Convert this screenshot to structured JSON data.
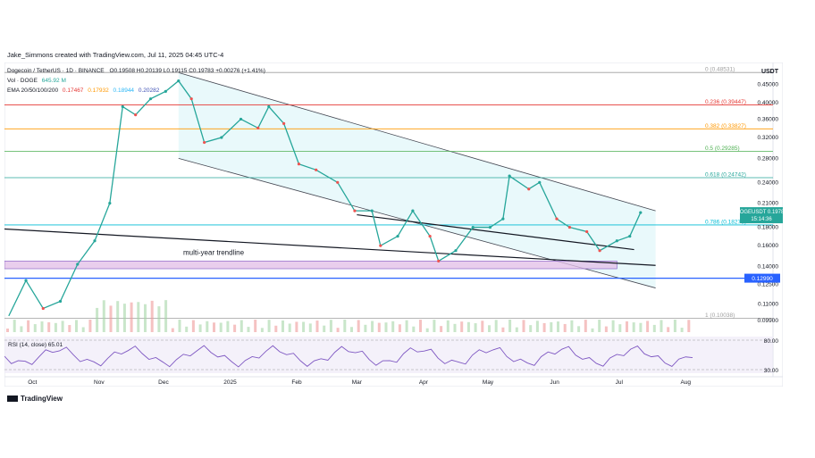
{
  "caption": "Jake_Simmons created with TradingView.com, Jul 11, 2025 04:45 UTC-4",
  "header": {
    "symbol": "Dogecoin / TetherUS · 1D · BINANCE",
    "ohlc": "O0.19508 H0.20139 L0.19115 C0.19783 +0.00276 (+1.41%)",
    "vol_label": "Vol · DOGE",
    "vol_value": "645.92 M",
    "ema_label": "EMA 20/50/100/200",
    "ema_values": [
      "0.17467",
      "0.17932",
      "0.18944",
      "0.20282"
    ]
  },
  "currency": "USDT",
  "price_badge": {
    "symbol": "DOGEUSDT",
    "value": "0.19783",
    "countdown": "15:14:36"
  },
  "support_badge": "0.12990",
  "rsi_label": "RSI (14, close)",
  "rsi_value": "65.01",
  "rsi_axis": [
    "80.00",
    "30.00"
  ],
  "watermark": "TradingView",
  "chart_data": {
    "type": "line",
    "title": "Dogecoin / TetherUS · 1D · BINANCE",
    "x_axis_labels": [
      "Oct",
      "Nov",
      "Dec",
      "2025",
      "Feb",
      "Mar",
      "Apr",
      "May",
      "Jun",
      "Jul",
      "Aug"
    ],
    "y_axis_labels": [
      "0.45000",
      "0.40000",
      "0.36000",
      "0.32000",
      "0.28000",
      "0.24000",
      "0.21000",
      "0.18000",
      "0.16000",
      "0.14000",
      "0.12500",
      "0.11000",
      "0.09900"
    ],
    "ylim": [
      0.093,
      0.5
    ],
    "y_scale": "log",
    "fib_levels": [
      {
        "label": "0 (0.48531)",
        "value": 0.48531,
        "color": "#9e9e9e"
      },
      {
        "label": "0.236 (0.39447)",
        "value": 0.39447,
        "color": "#e53935"
      },
      {
        "label": "0.382 (0.33827)",
        "value": 0.33827,
        "color": "#ff9800"
      },
      {
        "label": "0.5 (0.29285)",
        "value": 0.29285,
        "color": "#4caf50"
      },
      {
        "label": "0.618 (0.24742)",
        "value": 0.24742,
        "color": "#26a69a"
      },
      {
        "label": "0.786 (0.18276)",
        "value": 0.18276,
        "color": "#00bcd4"
      },
      {
        "label": "1 (0.10038)",
        "value": 0.10038,
        "color": "#9e9e9e"
      }
    ],
    "annotation": "multi-year trendline",
    "support_level": 0.1299,
    "zone": [
      0.138,
      0.145
    ],
    "price_path": [
      {
        "date": "2024-09-20",
        "close": 0.102
      },
      {
        "date": "2024-09-28",
        "close": 0.128
      },
      {
        "date": "2024-10-06",
        "close": 0.107
      },
      {
        "date": "2024-10-14",
        "close": 0.112
      },
      {
        "date": "2024-10-22",
        "close": 0.142
      },
      {
        "date": "2024-10-30",
        "close": 0.165
      },
      {
        "date": "2024-11-06",
        "close": 0.21
      },
      {
        "date": "2024-11-12",
        "close": 0.39
      },
      {
        "date": "2024-11-18",
        "close": 0.37
      },
      {
        "date": "2024-11-25",
        "close": 0.41
      },
      {
        "date": "2024-12-02",
        "close": 0.43
      },
      {
        "date": "2024-12-08",
        "close": 0.46
      },
      {
        "date": "2024-12-14",
        "close": 0.41
      },
      {
        "date": "2024-12-20",
        "close": 0.31
      },
      {
        "date": "2024-12-28",
        "close": 0.32
      },
      {
        "date": "2025-01-06",
        "close": 0.36
      },
      {
        "date": "2025-01-14",
        "close": 0.34
      },
      {
        "date": "2025-01-19",
        "close": 0.39
      },
      {
        "date": "2025-01-26",
        "close": 0.35
      },
      {
        "date": "2025-02-02",
        "close": 0.27
      },
      {
        "date": "2025-02-10",
        "close": 0.26
      },
      {
        "date": "2025-02-20",
        "close": 0.24
      },
      {
        "date": "2025-02-28",
        "close": 0.2
      },
      {
        "date": "2025-03-08",
        "close": 0.2
      },
      {
        "date": "2025-03-12",
        "close": 0.16
      },
      {
        "date": "2025-03-20",
        "close": 0.17
      },
      {
        "date": "2025-03-27",
        "close": 0.2
      },
      {
        "date": "2025-04-04",
        "close": 0.17
      },
      {
        "date": "2025-04-08",
        "close": 0.145
      },
      {
        "date": "2025-04-16",
        "close": 0.155
      },
      {
        "date": "2025-04-24",
        "close": 0.18
      },
      {
        "date": "2025-05-02",
        "close": 0.18
      },
      {
        "date": "2025-05-08",
        "close": 0.19
      },
      {
        "date": "2025-05-11",
        "close": 0.25
      },
      {
        "date": "2025-05-20",
        "close": 0.23
      },
      {
        "date": "2025-05-25",
        "close": 0.24
      },
      {
        "date": "2025-06-02",
        "close": 0.19
      },
      {
        "date": "2025-06-08",
        "close": 0.18
      },
      {
        "date": "2025-06-16",
        "close": 0.175
      },
      {
        "date": "2025-06-22",
        "close": 0.155
      },
      {
        "date": "2025-06-30",
        "close": 0.165
      },
      {
        "date": "2025-07-06",
        "close": 0.17
      },
      {
        "date": "2025-07-11",
        "close": 0.19783
      }
    ]
  }
}
